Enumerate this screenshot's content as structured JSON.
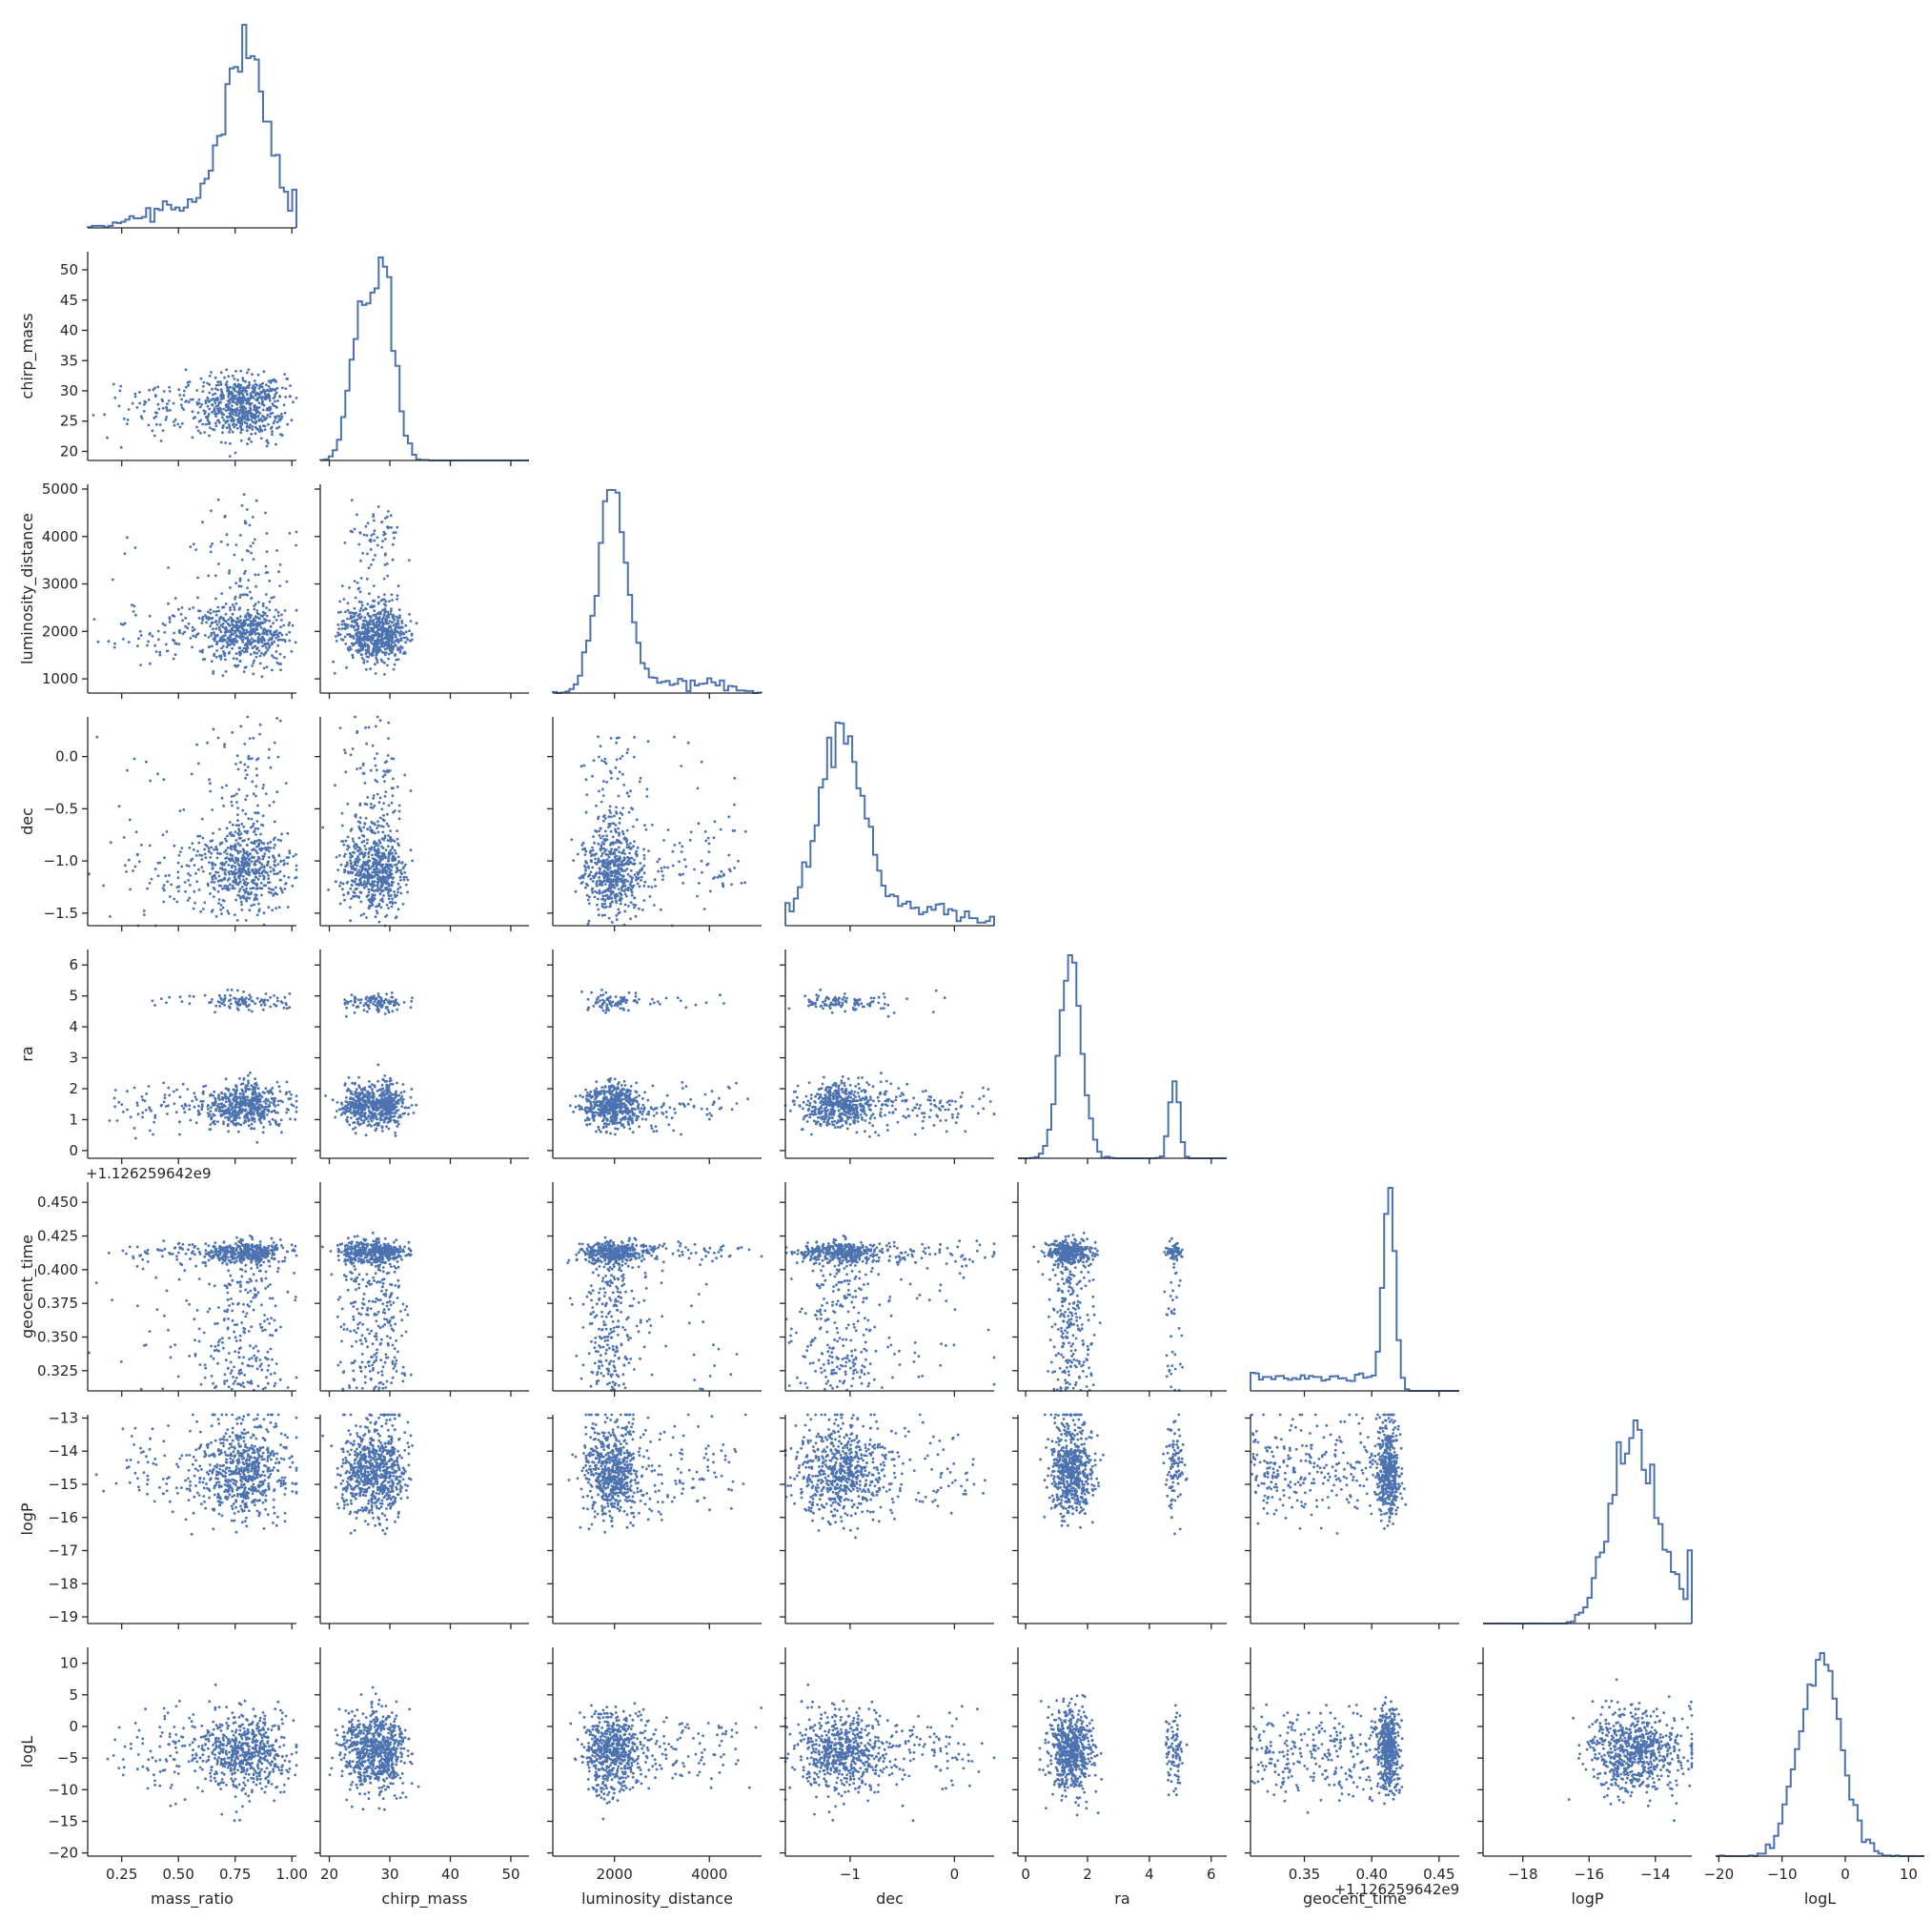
{
  "chart_data": {
    "type": "scatter",
    "variables": [
      "mass_ratio",
      "chirp_mass",
      "luminosity_distance",
      "dec",
      "ra",
      "geocent_time",
      "logP",
      "logL"
    ],
    "axis_labels": {
      "mass_ratio": "mass_ratio",
      "chirp_mass": "chirp_mass",
      "luminosity_distance": "luminosity_distance",
      "dec": "dec",
      "ra": "ra",
      "geocent_time": "geocent_time",
      "logP": "logP",
      "logL": "logL"
    },
    "ranges": {
      "mass_ratio": [
        0.1,
        1.02
      ],
      "chirp_mass": [
        18.5,
        53
      ],
      "luminosity_distance": [
        700,
        5100
      ],
      "dec": [
        -1.62,
        0.38
      ],
      "ra": [
        -0.25,
        6.5
      ],
      "geocent_time": [
        0.31,
        0.465
      ],
      "logP": [
        -19.2,
        -12.9
      ],
      "logL": [
        -20.5,
        12.5
      ]
    },
    "ticks": {
      "mass_ratio": [
        0.25,
        0.5,
        0.75,
        1.0
      ],
      "chirp_mass": [
        20,
        30,
        40,
        50
      ],
      "luminosity_distance": [
        1000,
        2000,
        3000,
        4000,
        5000
      ],
      "dec": [
        -1.5,
        -1.0,
        -0.5,
        0.0
      ],
      "ra": [
        0,
        1,
        2,
        3,
        4,
        5,
        6
      ],
      "geocent_time": [
        0.325,
        0.35,
        0.375,
        0.4,
        0.425,
        0.45
      ],
      "logP": [
        -19,
        -18,
        -17,
        -16,
        -15,
        -14,
        -13
      ],
      "logL": [
        -20,
        -15,
        -10,
        -5,
        0,
        5,
        10
      ]
    },
    "bottom_ticks": {
      "mass_ratio": [
        0.25,
        0.5,
        0.75,
        1.0
      ],
      "chirp_mass": [
        20,
        30,
        40,
        50
      ],
      "luminosity_distance": [
        2000,
        4000
      ],
      "dec": [
        -1,
        0
      ],
      "ra": [
        0,
        2,
        4,
        6
      ],
      "geocent_time": [
        0.35,
        0.4,
        0.45
      ],
      "logP": [
        -18,
        -16,
        -14
      ],
      "logL": [
        -20,
        -10,
        0,
        10
      ]
    },
    "tick_labels": {
      "mass_ratio": [
        "0.25",
        "0.50",
        "0.75",
        "1.00"
      ],
      "chirp_mass": [
        "20",
        "30",
        "40",
        "50"
      ],
      "luminosity_distance": [
        "2000",
        "4000"
      ],
      "dec": [
        "−1",
        "0"
      ],
      "ra": [
        "0",
        "2",
        "4",
        "6"
      ],
      "geocent_time": [
        "0.35",
        "0.40",
        "0.45"
      ],
      "logP": [
        "−18",
        "−16",
        "−14"
      ],
      "logL": [
        "−20",
        "−10",
        "0",
        "10"
      ]
    },
    "left_tick_labels": {
      "chirp_mass": [
        "20",
        "25",
        "30",
        "35",
        "40",
        "45",
        "50"
      ],
      "luminosity_distance": [
        "1000",
        "2000",
        "3000",
        "4000",
        "5000"
      ],
      "dec": [
        "−1.5",
        "−1.0",
        "−0.5",
        "0.0"
      ],
      "ra": [
        "0",
        "1",
        "2",
        "3",
        "4",
        "5",
        "6"
      ],
      "geocent_time": [
        "0.325",
        "0.350",
        "0.375",
        "0.400",
        "0.425",
        "0.450"
      ],
      "logP": [
        "−19",
        "−18",
        "−17",
        "−16",
        "−15",
        "−14",
        "−13"
      ],
      "logL": [
        "−20",
        "−15",
        "−10",
        "−5",
        "0",
        "5",
        "10"
      ]
    },
    "left_ticks": {
      "chirp_mass": [
        20,
        25,
        30,
        35,
        40,
        45,
        50
      ],
      "luminosity_distance": [
        1000,
        2000,
        3000,
        4000,
        5000
      ],
      "dec": [
        -1.5,
        -1.0,
        -0.5,
        0.0
      ],
      "ra": [
        0,
        1,
        2,
        3,
        4,
        5,
        6
      ],
      "geocent_time": [
        0.325,
        0.35,
        0.375,
        0.4,
        0.425,
        0.45
      ],
      "logP": [
        -19,
        -18,
        -17,
        -16,
        -15,
        -14,
        -13
      ],
      "logL": [
        -20,
        -15,
        -10,
        -5,
        0,
        5,
        10
      ]
    },
    "offset_text": "+1.126259642e9",
    "marginal_peaks": {
      "mass_ratio": 0.8,
      "chirp_mass": 29,
      "luminosity_distance": 1950,
      "dec": -1.1,
      "ra": 1.45,
      "geocent_time": 0.413,
      "logP": -14.8,
      "logL": -4
    },
    "grid": false,
    "legend": "none",
    "series_color": "#4c72b0"
  }
}
